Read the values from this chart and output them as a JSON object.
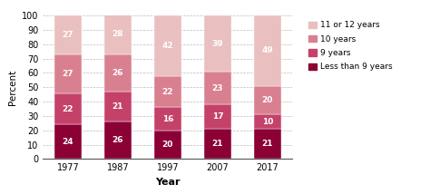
{
  "years": [
    "1977",
    "1987",
    "1997",
    "2007",
    "2017"
  ],
  "series": {
    "Less than 9 years": [
      24,
      26,
      20,
      21,
      21
    ],
    "9 years": [
      22,
      21,
      16,
      17,
      10
    ],
    "10 years": [
      27,
      26,
      22,
      23,
      20
    ],
    "11 or 12 years": [
      27,
      28,
      42,
      39,
      49
    ]
  },
  "colors": {
    "Less than 9 years": "#8B0035",
    "9 years": "#C4426A",
    "10 years": "#D98090",
    "11 or 12 years": "#EABFBF"
  },
  "ylabel": "Percent",
  "xlabel": "Year",
  "ylim": [
    0,
    100
  ],
  "yticks": [
    0,
    10,
    20,
    30,
    40,
    50,
    60,
    70,
    80,
    90,
    100
  ],
  "legend_order": [
    "11 or 12 years",
    "10 years",
    "9 years",
    "Less than 9 years"
  ],
  "bar_width": 0.55
}
